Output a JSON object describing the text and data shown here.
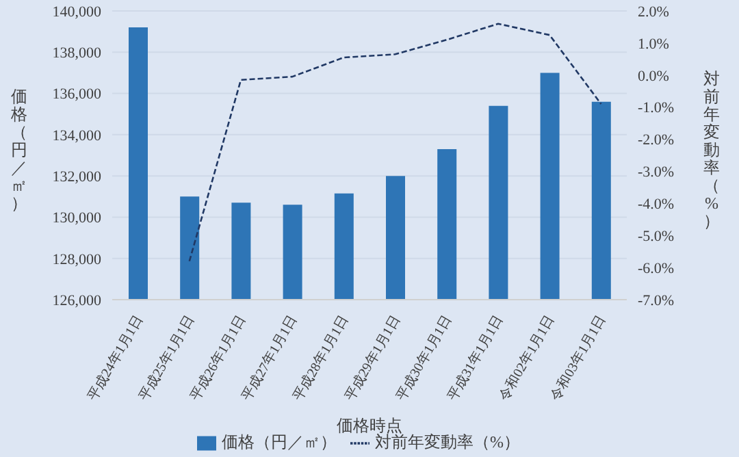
{
  "chart_data": {
    "type": "bar",
    "xlabel": "価格時点",
    "ylabel": "価格（円／㎡）",
    "y2label": "対前年変動率（%）",
    "categories": [
      "平成24年1月1日",
      "平成25年1月1日",
      "平成26年1月1日",
      "平成27年1月1日",
      "平成28年1月1日",
      "平成29年1月1日",
      "平成30年1月1日",
      "平成31年1月1日",
      "令和02年1月1日",
      "令和03年1月1日"
    ],
    "series": [
      {
        "name": "価格（円／㎡）",
        "color": "#2e75b6",
        "values": [
          139200,
          131000,
          130700,
          130600,
          131150,
          132000,
          133300,
          135400,
          137000,
          135600
        ]
      },
      {
        "name": "対前年変動率（%）",
        "type": "line",
        "axis": "y2",
        "color": "#203864",
        "line_style": "dashed",
        "marker": "none",
        "values": [
          null,
          -5.8,
          -0.15,
          -0.05,
          0.55,
          0.65,
          1.1,
          1.6,
          1.25,
          -0.9
        ]
      }
    ],
    "ylim": [
      126000,
      140000
    ],
    "yticks": [
      {
        "value": 126000,
        "label": "126,000"
      },
      {
        "value": 128000,
        "label": "128,000"
      },
      {
        "value": 130000,
        "label": "130,000"
      },
      {
        "value": 132000,
        "label": "132,000"
      },
      {
        "value": 134000,
        "label": "134,000"
      },
      {
        "value": 136000,
        "label": "136,000"
      },
      {
        "value": 138000,
        "label": "138,000"
      },
      {
        "value": 140000,
        "label": "140,000"
      }
    ],
    "y2lim": [
      -7,
      2
    ],
    "y2ticks": [
      {
        "value": 2,
        "label": "2.0%"
      },
      {
        "value": 1,
        "label": "1.0%"
      },
      {
        "value": 0,
        "label": "0.0%"
      },
      {
        "value": -1,
        "label": "-1.0%"
      },
      {
        "value": -2,
        "label": "-2.0%"
      },
      {
        "value": -3,
        "label": "-3.0%"
      },
      {
        "value": -4,
        "label": "-4.0%"
      },
      {
        "value": -5,
        "label": "-5.0%"
      },
      {
        "value": -6,
        "label": "-6.0%"
      },
      {
        "value": -7,
        "label": "-7.0%"
      }
    ],
    "grid": "y",
    "legend": "bottom"
  }
}
